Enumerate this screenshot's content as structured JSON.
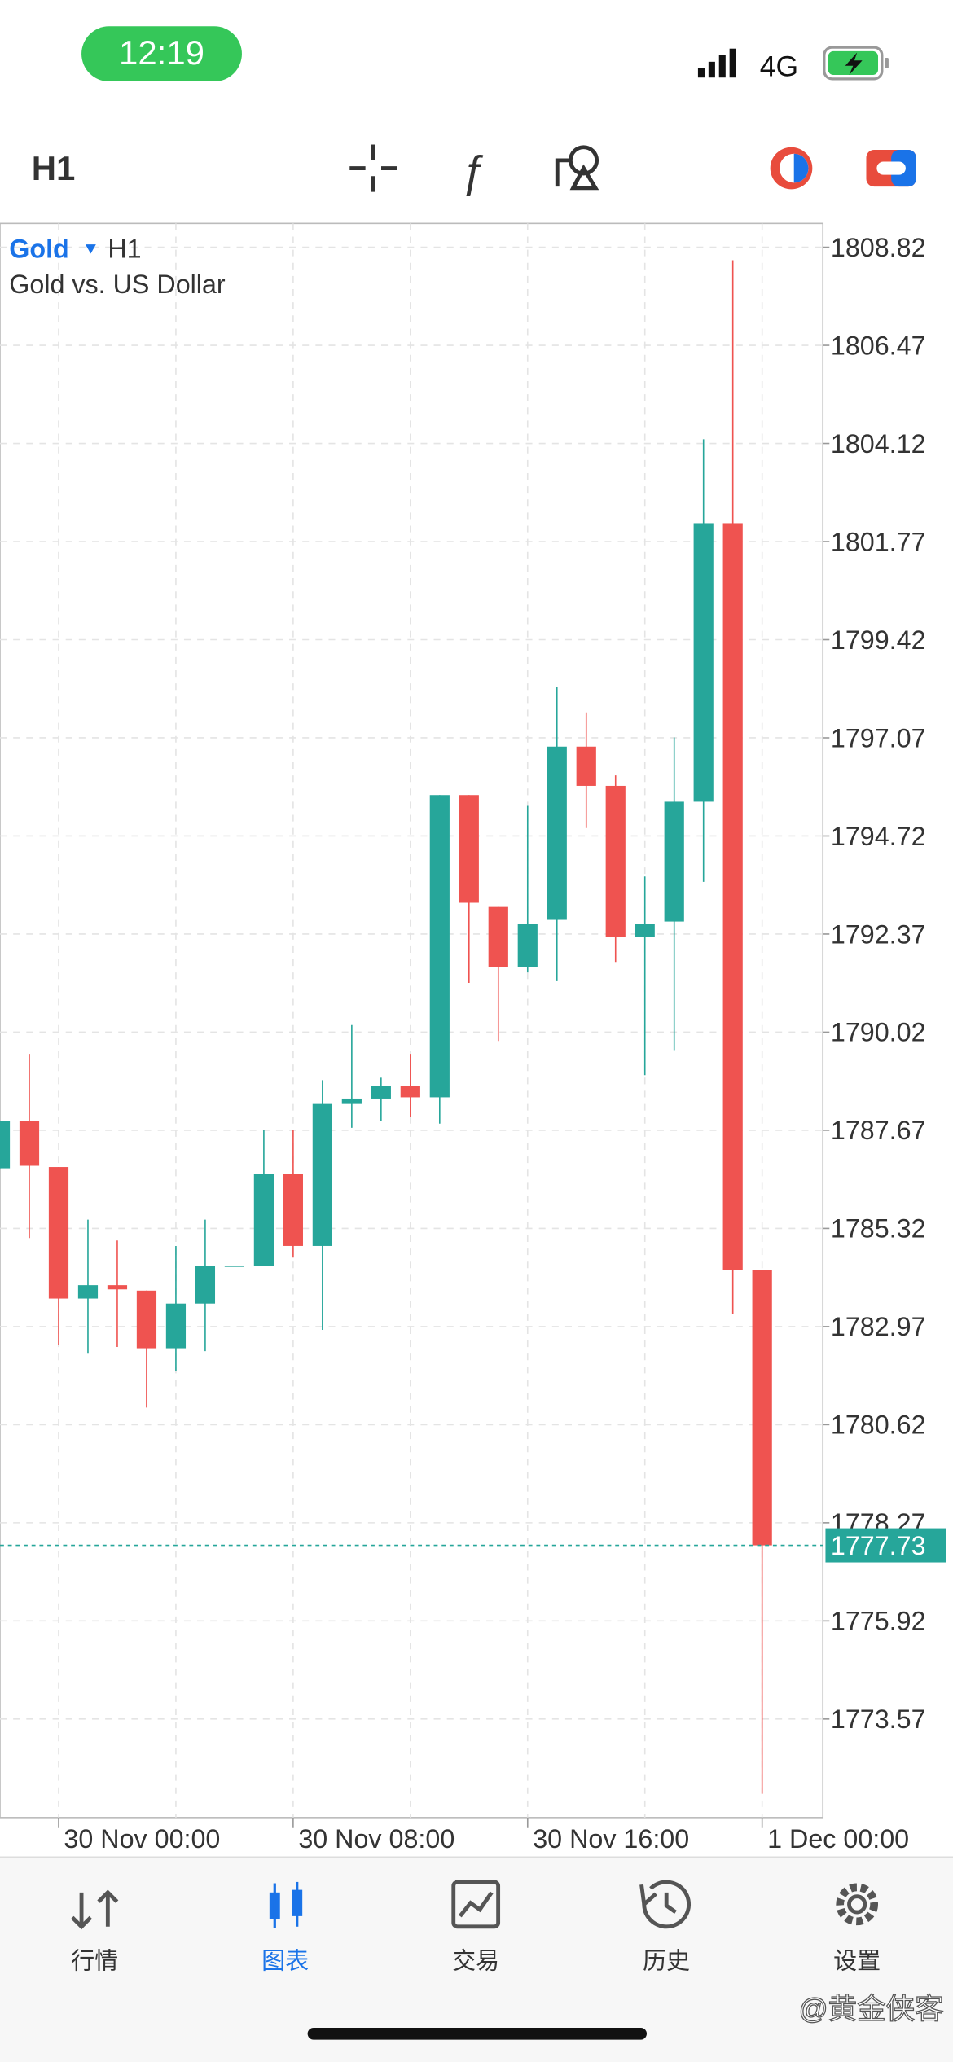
{
  "ui": {
    "status_time": "12:19",
    "network": "4G",
    "timeframe_button": "H1",
    "symbol": "Gold",
    "symbol_timeframe": "H1",
    "description": "Gold vs. US Dollar",
    "tabs": [
      "行情",
      "图表",
      "交易",
      "历史",
      "设置"
    ],
    "watermark": "@黄金侠客"
  },
  "chart_data": {
    "type": "candlestick",
    "up_color": "#26a69a",
    "down_color": "#ef5350",
    "grid": true,
    "categories": [
      null,
      null,
      "30 Nov 00:00",
      null,
      null,
      null,
      null,
      null,
      null,
      null,
      "30 Nov 08:00",
      null,
      null,
      null,
      null,
      null,
      null,
      null,
      "30 Nov 16:00",
      null,
      null,
      null,
      null,
      null,
      null,
      null,
      "1 Dec 00:00"
    ],
    "open": [
      1786.76,
      1787.89,
      1786.79,
      1783.64,
      1783.96,
      1783.83,
      1782.45,
      1783.52,
      1784.43,
      1784.43,
      1786.63,
      1784.9,
      1788.3,
      1788.43,
      1788.74,
      1788.46,
      1795.7,
      1793.02,
      1791.57,
      1792.71,
      1796.86,
      1795.92,
      1792.3,
      1792.67,
      1795.54,
      1802.21,
      1784.33
    ],
    "close": [
      1787.89,
      1786.82,
      1783.64,
      1783.96,
      1783.86,
      1782.45,
      1783.52,
      1784.43,
      1784.43,
      1786.63,
      1784.9,
      1788.3,
      1788.43,
      1788.74,
      1788.46,
      1795.7,
      1793.12,
      1791.57,
      1792.61,
      1796.86,
      1795.92,
      1792.3,
      1792.61,
      1795.54,
      1802.21,
      1784.33,
      1777.73
    ],
    "high": [
      1787.89,
      1789.5,
      1786.79,
      1785.53,
      1785.03,
      1783.83,
      1784.9,
      1785.53,
      1784.43,
      1787.67,
      1787.67,
      1788.87,
      1790.19,
      1788.93,
      1789.5,
      1795.7,
      1795.7,
      1793.02,
      1795.44,
      1798.28,
      1797.68,
      1796.17,
      1793.75,
      1797.08,
      1804.22,
      1808.51,
      1784.33
    ],
    "low": [
      1786.76,
      1785.09,
      1782.54,
      1782.32,
      1782.48,
      1781.03,
      1781.91,
      1782.38,
      1784.43,
      1784.43,
      1784.62,
      1782.89,
      1787.73,
      1787.89,
      1787.99,
      1787.83,
      1791.2,
      1789.81,
      1791.45,
      1791.26,
      1794.91,
      1791.7,
      1788.99,
      1789.59,
      1793.62,
      1783.26,
      1771.78
    ],
    "last_price": 1777.73,
    "ylim": [
      1771.21,
      1809.39
    ],
    "yticks": [
      1808.82,
      1806.47,
      1804.12,
      1801.77,
      1799.42,
      1797.07,
      1794.72,
      1792.37,
      1790.02,
      1787.67,
      1785.32,
      1782.97,
      1780.62,
      1778.27,
      1775.92,
      1773.57
    ]
  }
}
